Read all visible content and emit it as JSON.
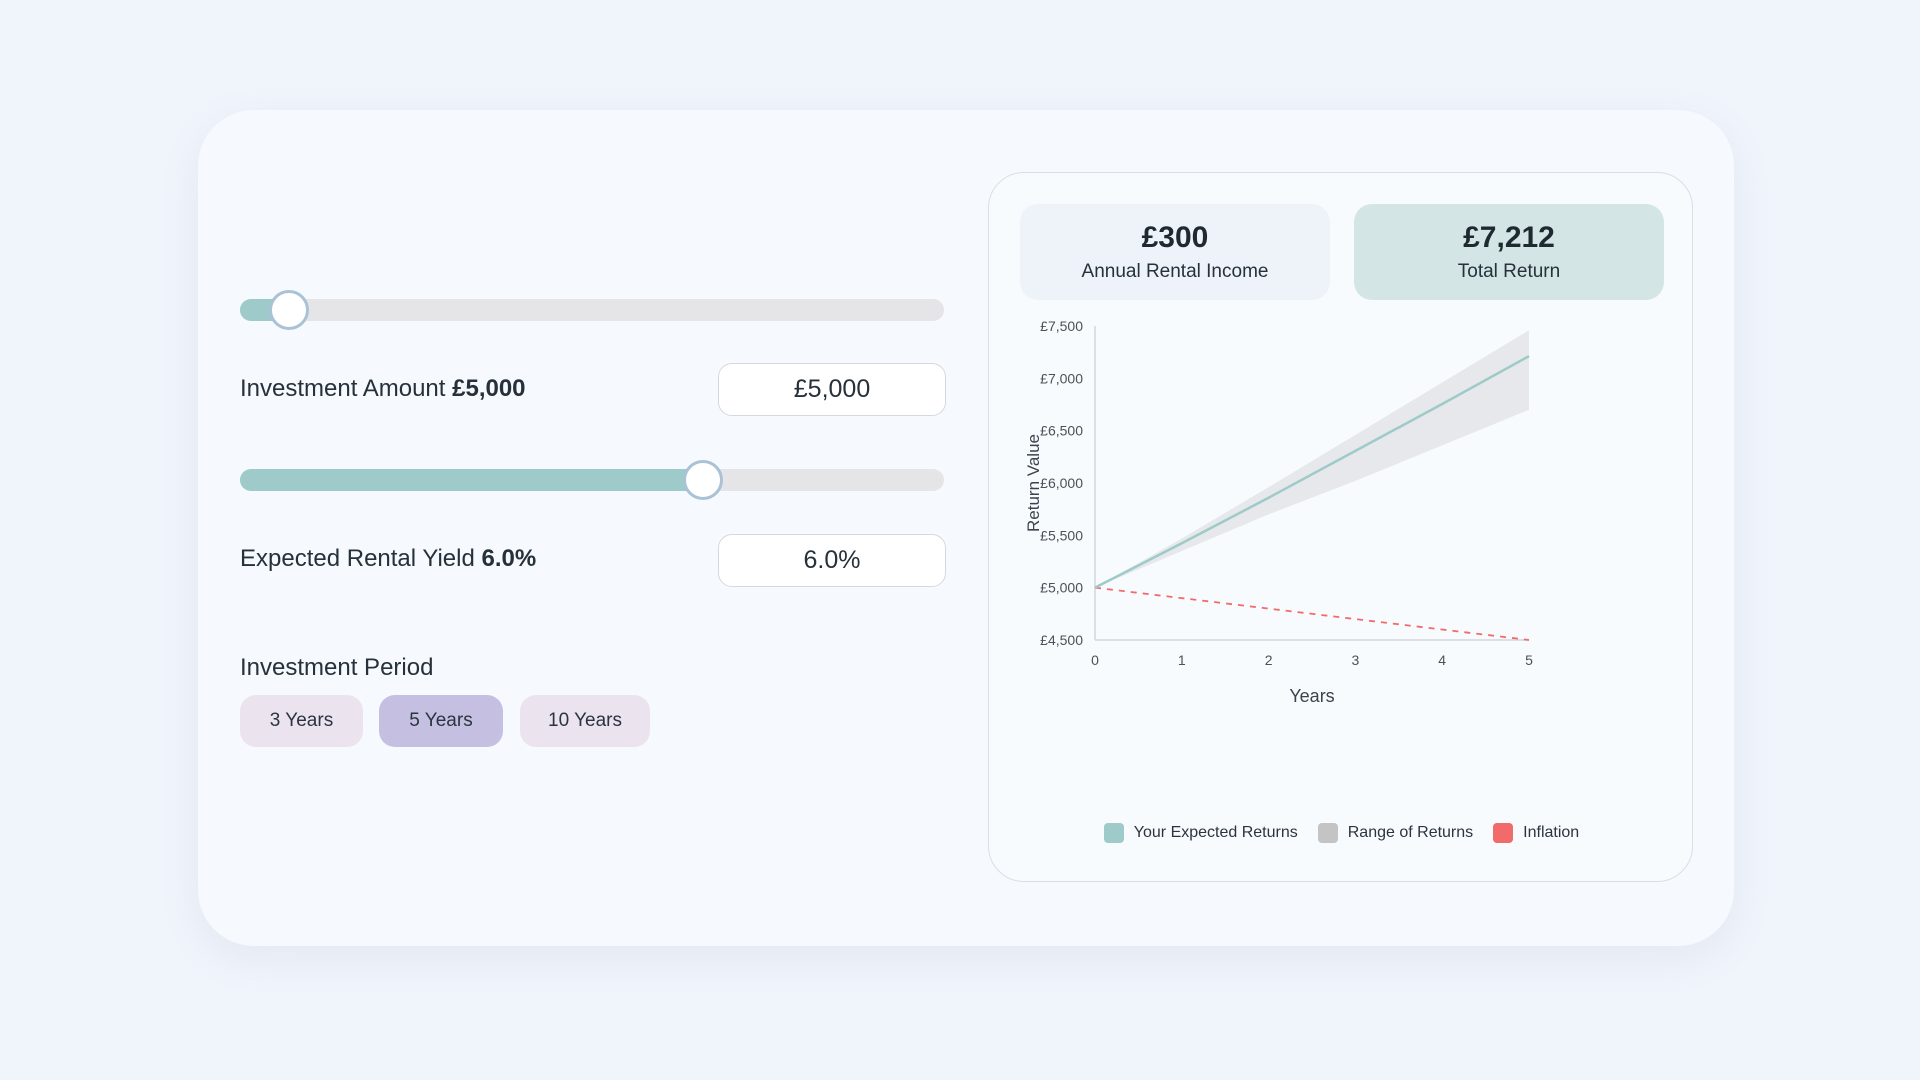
{
  "investment": {
    "label": "Investment Amount",
    "value_text": "£5,000",
    "input_value": "£5,000",
    "slider_fraction": 0.07
  },
  "yield": {
    "label": "Expected Rental Yield",
    "value_text": "6.0%",
    "input_value": "6.0%",
    "slider_fraction": 0.657
  },
  "period": {
    "title": "Investment Period",
    "options": [
      "3 Years",
      "5 Years",
      "10 Years"
    ],
    "selected": "5 Years"
  },
  "stats": [
    {
      "value": "£300",
      "label": "Annual Rental Income"
    },
    {
      "value": "£7,212",
      "label": "Total Return"
    }
  ],
  "colors": {
    "expected": "#9ecbc9",
    "range": "#c4c4c4",
    "inflation": "#f26b6b",
    "accent_active": "#c5c0e2"
  },
  "chart_data": {
    "type": "line",
    "xlabel": "Years",
    "ylabel": "Return Value",
    "x": [
      0,
      1,
      2,
      3,
      4,
      5
    ],
    "x_ticks": [
      "0",
      "1",
      "2",
      "3",
      "4",
      "5"
    ],
    "ylim": [
      4500,
      7500
    ],
    "y_ticks": [
      "£4,500",
      "£5,000",
      "£5,500",
      "£6,000",
      "£6,500",
      "£7,000",
      "£7,500"
    ],
    "y_tick_values": [
      4500,
      5000,
      5500,
      6000,
      6500,
      7000,
      7500
    ],
    "series": [
      {
        "name": "Your Expected Returns",
        "values": [
          5000,
          5424,
          5859,
          6307,
          6755,
          7212
        ]
      },
      {
        "name": "Range of Returns",
        "lower": [
          5000,
          5350,
          5700,
          6020,
          6360,
          6700
        ],
        "upper": [
          5000,
          5470,
          5960,
          6460,
          6960,
          7460
        ]
      },
      {
        "name": "Inflation",
        "values": [
          5000,
          4900,
          4800,
          4700,
          4600,
          4500
        ]
      }
    ],
    "legend": "bottom"
  }
}
